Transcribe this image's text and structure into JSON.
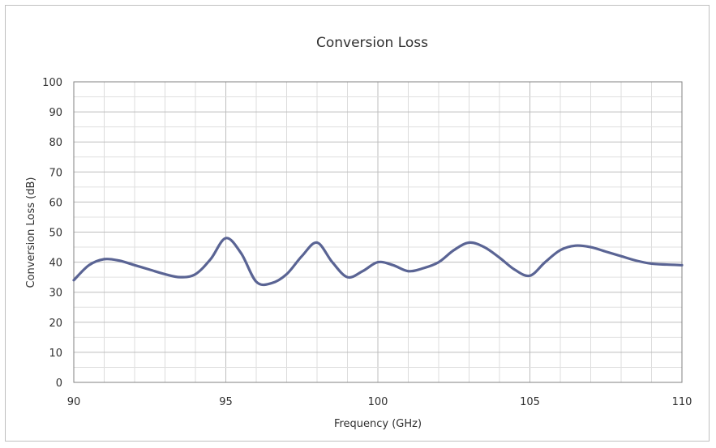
{
  "chart_data": {
    "type": "line",
    "title": "Conversion Loss",
    "xlabel": "Frequency (GHz)",
    "ylabel": "Conversion Loss (dB)",
    "xlim": [
      90,
      110
    ],
    "ylim": [
      0,
      100
    ],
    "x_ticks": [
      90,
      95,
      100,
      105,
      110
    ],
    "y_ticks": [
      0,
      10,
      20,
      30,
      40,
      50,
      60,
      70,
      80,
      90,
      100
    ],
    "grid": true,
    "legend": "none",
    "line_color": "#5a6494",
    "series": [
      {
        "x": [
          90,
          90.5,
          91,
          91.5,
          92,
          92.5,
          93,
          93.5,
          94,
          94.5,
          95,
          95.5,
          96,
          96.5,
          97,
          97.5,
          98,
          98.5,
          99,
          99.5,
          100,
          100.5,
          101,
          101.5,
          102,
          102.5,
          103,
          103.5,
          104,
          104.5,
          105,
          105.5,
          106,
          106.5,
          107,
          107.5,
          108,
          108.5,
          109,
          109.5,
          110
        ],
        "y": [
          34,
          39,
          41,
          40.5,
          39,
          37.5,
          36,
          35,
          36,
          41,
          48,
          43,
          33.5,
          33,
          36,
          42,
          46.5,
          40,
          35,
          37,
          40,
          39,
          37,
          38,
          40,
          44,
          46.5,
          45,
          41.5,
          37.5,
          35.5,
          40,
          44,
          45.5,
          45,
          43.5,
          42,
          40.5,
          39.5,
          39.2,
          39
        ]
      }
    ]
  }
}
